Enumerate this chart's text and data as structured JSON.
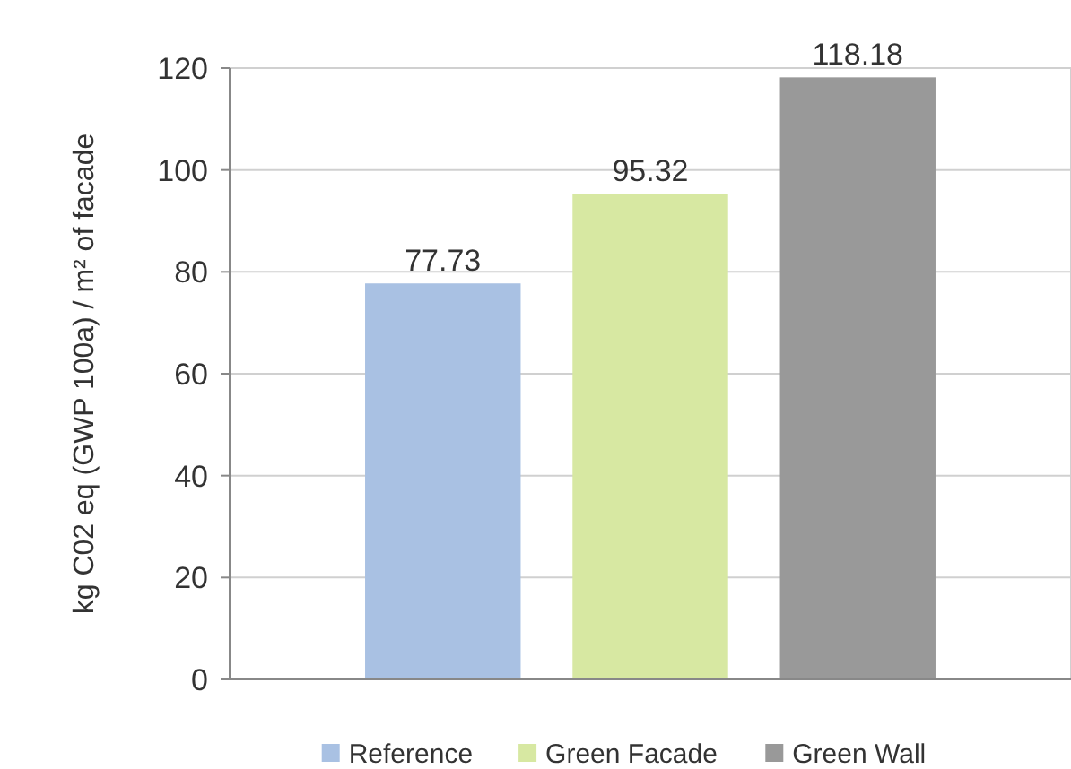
{
  "chart_data": {
    "type": "bar",
    "ylabel": "kg C02 eq (GWP 100a) / m² of facade",
    "categories": [
      null
    ],
    "series": [
      {
        "name": "Reference",
        "color": "#a9c1e3",
        "values": [
          77.73
        ]
      },
      {
        "name": "Green Facade",
        "color": "#d7e8a2",
        "values": [
          95.32
        ]
      },
      {
        "name": "Green Wall",
        "color": "#999999",
        "values": [
          118.18
        ]
      }
    ],
    "ylim": [
      0,
      120
    ],
    "yticks": [
      0,
      20,
      40,
      60,
      80,
      100,
      120
    ],
    "grid": "y",
    "legend": "bottom",
    "data_labels": true
  }
}
